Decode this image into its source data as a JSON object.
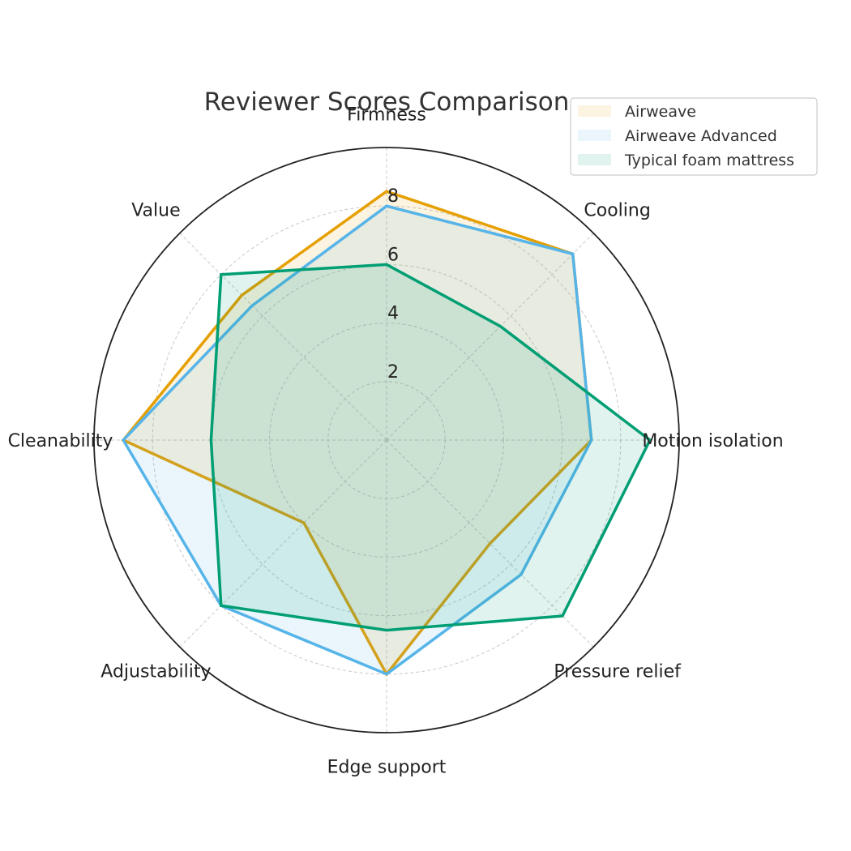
{
  "chart_data": {
    "type": "radar",
    "title": "Reviewer Scores Comparison",
    "categories": [
      "Firmness",
      "Cooling",
      "Motion isolation",
      "Pressure relief",
      "Edge support",
      "Adjustability",
      "Cleanability",
      "Value"
    ],
    "rlim": [
      0,
      10
    ],
    "rticks": [
      2,
      4,
      6,
      8
    ],
    "grid": true,
    "legend_position": "upper right",
    "series": [
      {
        "name": "Airweave",
        "color": "#E69F00",
        "values": [
          8.5,
          9.0,
          7.0,
          5.0,
          8.0,
          4.0,
          9.0,
          7.0
        ]
      },
      {
        "name": "Airweave Advanced",
        "color": "#56B4E9",
        "values": [
          8.0,
          9.0,
          7.0,
          6.5,
          8.0,
          8.0,
          9.0,
          6.5
        ]
      },
      {
        "name": "Typical foam mattress",
        "color": "#009E73",
        "values": [
          6.0,
          5.5,
          9.0,
          8.5,
          6.5,
          8.0,
          6.0,
          8.0
        ]
      }
    ]
  }
}
